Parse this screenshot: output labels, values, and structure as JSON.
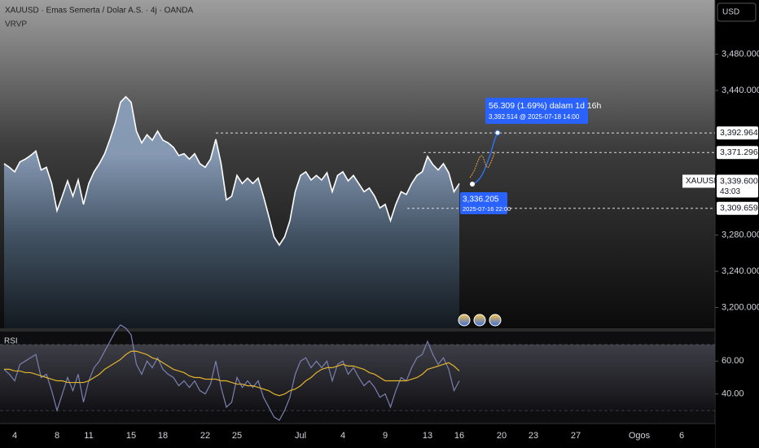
{
  "header": {
    "title": "XAUUSD · Emas Semerta / Dolar A.S. · 4j · OANDA",
    "indicator": "VRVP",
    "currency": "USD"
  },
  "chart_data": [
    {
      "type": "line",
      "categories": [
        null,
        null,
        "4",
        null,
        null,
        null,
        null,
        null,
        null,
        null,
        "8",
        null,
        null,
        null,
        null,
        null,
        "11",
        null,
        null,
        null,
        null,
        null,
        null,
        null,
        "15",
        null,
        null,
        null,
        null,
        null,
        "18",
        null,
        null,
        null,
        null,
        null,
        null,
        null,
        "22",
        null,
        null,
        null,
        null,
        null,
        "25",
        null,
        null,
        null,
        null,
        null,
        null,
        null,
        null,
        null,
        null,
        null,
        "Jul",
        null,
        null,
        null,
        null,
        null,
        null,
        null,
        "4",
        null,
        null,
        null,
        null,
        null,
        null,
        null,
        "9",
        null,
        null,
        null,
        null,
        null,
        null,
        null,
        "13",
        null,
        null,
        null,
        null,
        null,
        "16",
        null,
        null,
        null,
        null,
        null,
        null,
        null,
        "20",
        null,
        null,
        null,
        null,
        null,
        "23",
        null,
        null,
        null,
        null,
        null,
        null,
        null,
        "27",
        null,
        null,
        null,
        null,
        null,
        null,
        null,
        null,
        null,
        null,
        null,
        "Ogos",
        null,
        null,
        null,
        null,
        null,
        null,
        null,
        "6",
        null,
        null,
        null,
        null,
        null
      ],
      "series": [
        {
          "color": "#ffffff",
          "values": [
            3359,
            3355,
            3350,
            3361,
            3364,
            3368,
            3373,
            3352,
            3355,
            3337,
            3307,
            3323,
            3340,
            3323,
            3341,
            3314,
            3337,
            3350,
            3359,
            3370,
            3386,
            3404,
            3427,
            3433,
            3427,
            3395,
            3382,
            3391,
            3385,
            3395,
            3385,
            3382,
            3377,
            3368,
            3370,
            3364,
            3370,
            3359,
            3355,
            3364,
            3386,
            3359,
            3319,
            3323,
            3346,
            3337,
            3343,
            3337,
            3343,
            3323,
            3301,
            3278,
            3269,
            3278,
            3296,
            3328,
            3346,
            3350,
            3341,
            3346,
            3341,
            3349,
            3328,
            3346,
            3350,
            3340,
            3346,
            3337,
            3328,
            3332,
            3323,
            3310,
            3314,
            3296,
            3314,
            3328,
            3325,
            3337,
            3346,
            3350,
            3367,
            3358,
            3352,
            3359,
            3349,
            3328,
            3337,
            null,
            null,
            null,
            null,
            null,
            null,
            null,
            null,
            null,
            null,
            null,
            null,
            null,
            null,
            null,
            null,
            null,
            null,
            null,
            null,
            null,
            null,
            null,
            null,
            null,
            null,
            null,
            null,
            null,
            null,
            null,
            null,
            null,
            null,
            null,
            null,
            null,
            null,
            null,
            null,
            null,
            null,
            null,
            null,
            null,
            null,
            null
          ]
        }
      ],
      "ylim": [
        3177,
        3540
      ],
      "yticks": [
        {
          "value": 3480,
          "label": "3,480.000"
        },
        {
          "value": 3440,
          "label": "3,440.000"
        },
        {
          "value": 3280,
          "label": "3,280.000"
        },
        {
          "value": 3240,
          "label": "3,240.000"
        },
        {
          "value": 3200,
          "label": "3,200.000"
        }
      ],
      "price_lines": [
        {
          "value": 3392.964,
          "label": "3,392.964"
        },
        {
          "value": 3371.296,
          "label": "3,371.296"
        },
        {
          "value": 3309.659,
          "label": "3,309.659"
        }
      ],
      "last_price": {
        "value": 3339.6,
        "label": "3,339.600",
        "symbol": "XAUUSD",
        "countdown": "43:03"
      },
      "projection": {
        "text": "56.309 (1.69%) dalam 1d 16h",
        "detail": "3,392.514 @ 2025-07-18  14:00"
      },
      "point_label": {
        "price": "3,336.205",
        "time": "2025-07-16 22:00"
      }
    },
    {
      "type": "line",
      "title": "RSI",
      "series": [
        {
          "color": "#7b80b0",
          "values": [
            55,
            52,
            48,
            58,
            60,
            62,
            64,
            50,
            52,
            42,
            30,
            40,
            50,
            42,
            52,
            35,
            48,
            56,
            60,
            66,
            72,
            78,
            82,
            80,
            76,
            58,
            52,
            60,
            56,
            62,
            55,
            52,
            50,
            45,
            48,
            44,
            48,
            42,
            40,
            46,
            60,
            44,
            32,
            35,
            50,
            44,
            48,
            44,
            48,
            38,
            32,
            26,
            24,
            30,
            38,
            52,
            60,
            62,
            56,
            60,
            56,
            60,
            48,
            58,
            60,
            52,
            56,
            50,
            45,
            48,
            44,
            38,
            40,
            32,
            42,
            50,
            48,
            56,
            62,
            64,
            72,
            64,
            58,
            62,
            55,
            42,
            48,
            null,
            null,
            null,
            null,
            null,
            null,
            null,
            null,
            null,
            null,
            null,
            null,
            null,
            null,
            null,
            null,
            null,
            null,
            null,
            null,
            null,
            null,
            null,
            null,
            null,
            null,
            null,
            null,
            null,
            null,
            null,
            null,
            null,
            null,
            null,
            null,
            null,
            null,
            null,
            null,
            null,
            null,
            null,
            null,
            null,
            null,
            null
          ]
        },
        {
          "color": "#e2b42c",
          "values": [
            55,
            55,
            54,
            54,
            53,
            53,
            52,
            51,
            50,
            49,
            48,
            48,
            47,
            47,
            47,
            47,
            48,
            50,
            52,
            55,
            57,
            59,
            61,
            64,
            66,
            66,
            65,
            64,
            62,
            61,
            59,
            57,
            55,
            54,
            53,
            51,
            50,
            50,
            49,
            49,
            49,
            48,
            48,
            47,
            46,
            46,
            45,
            45,
            44,
            43,
            42,
            40,
            39,
            40,
            42,
            43,
            45,
            48,
            50,
            53,
            55,
            56,
            56,
            57,
            58,
            57,
            57,
            56,
            55,
            53,
            52,
            50,
            48,
            48,
            48,
            48,
            48,
            49,
            50,
            52,
            55,
            56,
            57,
            58,
            59,
            57,
            54,
            null,
            null,
            null,
            null,
            null,
            null,
            null,
            null,
            null,
            null,
            null,
            null,
            null,
            null,
            null,
            null,
            null,
            null,
            null,
            null,
            null,
            null,
            null,
            null,
            null,
            null,
            null,
            null,
            null,
            null,
            null,
            null,
            null,
            null,
            null,
            null,
            null,
            null,
            null,
            null,
            null,
            null,
            null,
            null,
            null,
            null,
            null
          ]
        }
      ],
      "ylim": [
        22,
        78
      ],
      "yticks": [
        {
          "value": 60,
          "label": "60.00"
        },
        {
          "value": 40,
          "label": "40.00"
        }
      ],
      "hlines": [
        30,
        70
      ]
    }
  ]
}
